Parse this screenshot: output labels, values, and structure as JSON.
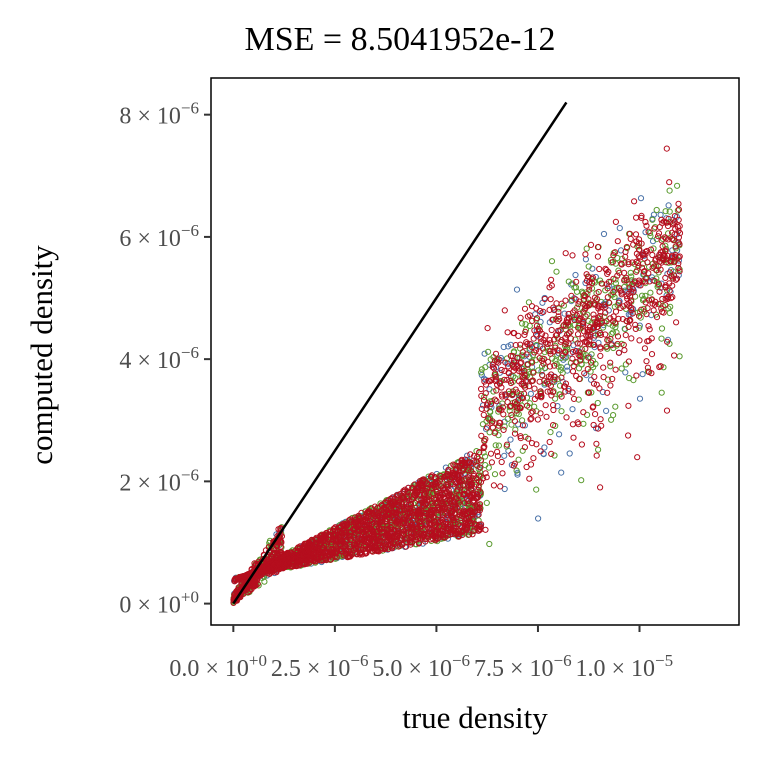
{
  "chart_data": {
    "type": "scatter",
    "title": "MSE = 8.5041952e-12",
    "xlabel": "true density",
    "ylabel": "computed density",
    "xlim": [
      -5.5e-07,
      1.245e-05
    ],
    "ylim": [
      -3.5e-07,
      8.6e-06
    ],
    "grid": false,
    "legend": "none",
    "x_ticks": [
      {
        "value": 0,
        "mantissa": "0.0",
        "times": " × 10",
        "exponent": "+0"
      },
      {
        "value": 2.5e-06,
        "mantissa": "2.5",
        "times": " × 10",
        "exponent": "−6"
      },
      {
        "value": 5e-06,
        "mantissa": "5.0",
        "times": " × 10",
        "exponent": "−6"
      },
      {
        "value": 7.5e-06,
        "mantissa": "7.5",
        "times": " × 10",
        "exponent": "−6"
      },
      {
        "value": 1e-05,
        "mantissa": "1.0",
        "times": " × 10",
        "exponent": "−5"
      }
    ],
    "y_ticks": [
      {
        "value": 0,
        "mantissa": "0",
        "times": " × 10",
        "exponent": "+0"
      },
      {
        "value": 2e-06,
        "mantissa": "2",
        "times": " × 10",
        "exponent": "−6"
      },
      {
        "value": 4e-06,
        "mantissa": "4",
        "times": " × 10",
        "exponent": "−6"
      },
      {
        "value": 6e-06,
        "mantissa": "6",
        "times": " × 10",
        "exponent": "−6"
      },
      {
        "value": 8e-06,
        "mantissa": "8",
        "times": " × 10",
        "exponent": "−6"
      }
    ],
    "reference_line": {
      "x": [
        0,
        8.2e-06
      ],
      "y": [
        0,
        8.2e-06
      ],
      "color": "#000000"
    },
    "series": [
      {
        "color": "#4a72a8",
        "n": 700
      },
      {
        "color": "#5a9a2e",
        "n": 1300
      },
      {
        "color": "#b50e1e",
        "n": 2600
      }
    ]
  }
}
